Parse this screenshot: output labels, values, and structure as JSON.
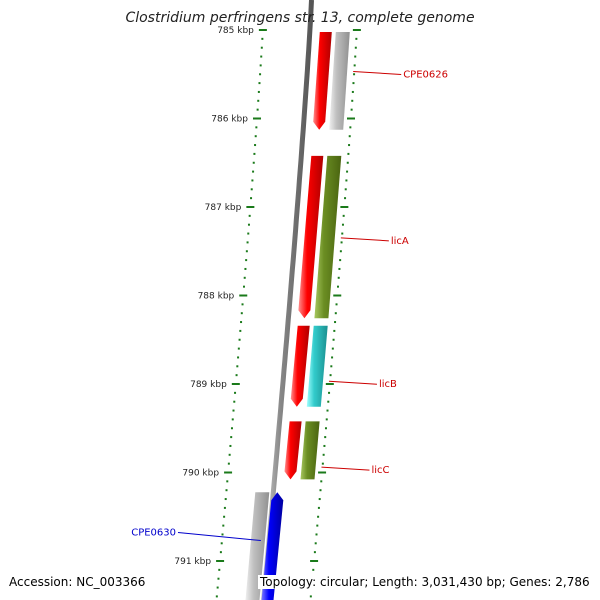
{
  "title": "Clostridium perfringens str. 13, complete genome",
  "footer": {
    "accession": "Accession: NC_003366",
    "topology": "Topology: circular; Length: 3,031,430 bp; Genes: 2,786"
  },
  "colors": {
    "backbone": "#888888",
    "tick": "#1a7a1a",
    "forward_cds": "#ff0000",
    "gene_gray": "#c0c0c0",
    "gene_olive": "#6b8e23",
    "gene_cyan": "#33cccc",
    "gene_blue": "#0000ff",
    "label_red": "#cc0000",
    "label_blue": "#0000cc"
  },
  "scale": {
    "unit": "kbp",
    "markers": [
      {
        "kbp": 785,
        "label": "785 kbp"
      },
      {
        "kbp": 786,
        "label": "786 kbp"
      },
      {
        "kbp": 787,
        "label": "787 kbp"
      },
      {
        "kbp": 788,
        "label": "788 kbp"
      },
      {
        "kbp": 789,
        "label": "789 kbp"
      },
      {
        "kbp": 790,
        "label": "790 kbp"
      },
      {
        "kbp": 791,
        "label": "791 kbp"
      }
    ]
  },
  "features": [
    {
      "name": "CPE0626",
      "track": "inner",
      "type": "red",
      "start": 785.0,
      "end": 786.15,
      "dir": "down"
    },
    {
      "name": "CPE0626",
      "track": "outer",
      "type": "gray",
      "start": 785.0,
      "end": 786.15,
      "dir": "none",
      "label": "CPE0626",
      "label_color": "red",
      "label_at": 785.48
    },
    {
      "name": "licA",
      "track": "inner",
      "type": "red",
      "start": 786.4,
      "end": 788.28,
      "dir": "down"
    },
    {
      "name": "licA",
      "track": "outer",
      "type": "olive",
      "start": 786.4,
      "end": 788.28,
      "dir": "none",
      "label": "licA",
      "label_color": "red",
      "label_at": 787.36
    },
    {
      "name": "licB",
      "track": "inner",
      "type": "red",
      "start": 788.32,
      "end": 789.28,
      "dir": "down"
    },
    {
      "name": "licB",
      "track": "outer",
      "type": "cyan",
      "start": 788.32,
      "end": 789.28,
      "dir": "none",
      "label": "licB",
      "label_color": "red",
      "label_at": 788.98
    },
    {
      "name": "licC",
      "track": "inner",
      "type": "red",
      "start": 789.4,
      "end": 790.1,
      "dir": "down"
    },
    {
      "name": "licC",
      "track": "outer",
      "type": "olive",
      "start": 789.4,
      "end": 790.1,
      "dir": "none",
      "label": "licC",
      "label_color": "red",
      "label_at": 789.95
    },
    {
      "name": "CPE0630",
      "track": "rev_outer",
      "type": "gray",
      "start": 790.2,
      "end": 791.5,
      "dir": "none"
    },
    {
      "name": "CPE0630",
      "track": "rev_inner",
      "type": "blue",
      "start": 790.2,
      "end": 791.5,
      "dir": "up",
      "label": "CPE0630",
      "label_color": "blue",
      "label_at": 790.78
    }
  ]
}
